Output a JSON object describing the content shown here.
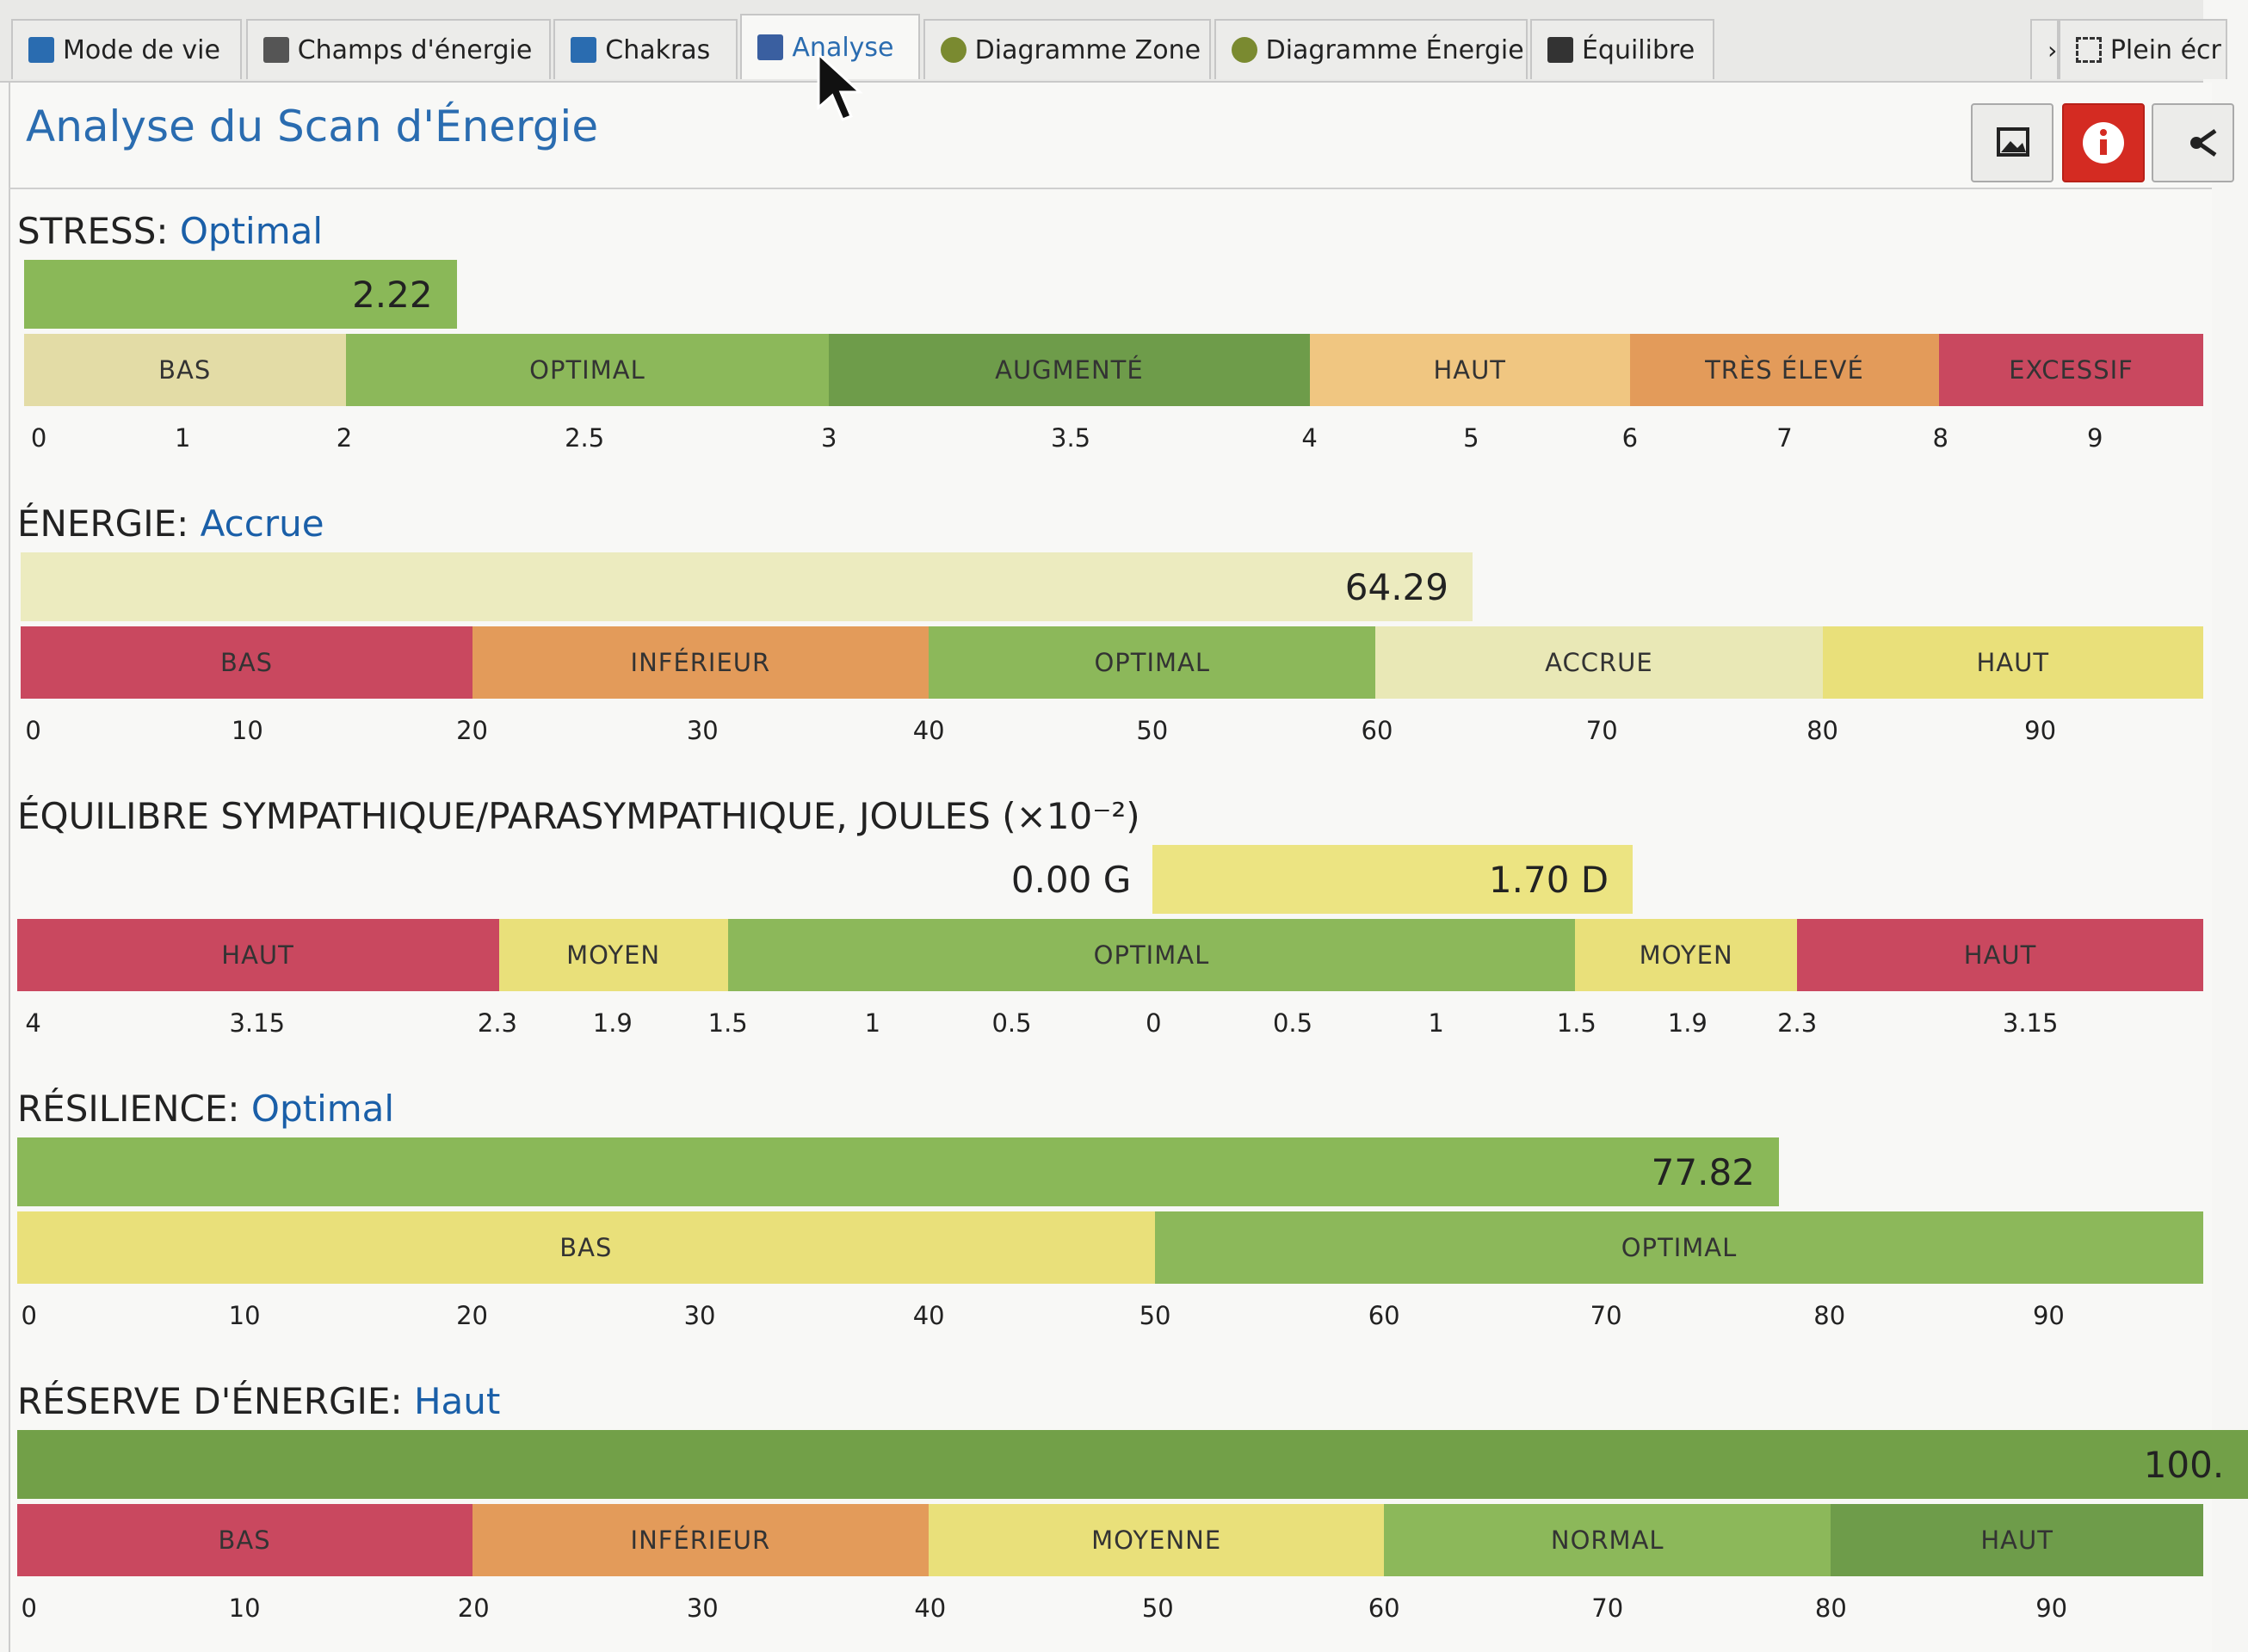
{
  "tabs": [
    "Mode de vie",
    "Champs d'énergie",
    "Chakras",
    "Analyse",
    "Diagramme Zone",
    "Diagramme Énergie",
    "Équilibre"
  ],
  "fullscreen": "Plein écr",
  "title": "Analyse du Scan d'Énergie",
  "sections": [
    {
      "label": "STRESS:",
      "status": "Optimal",
      "value": "2.22",
      "zones": [
        "BAS",
        "OPTIMAL",
        "AUGMENTÉ",
        "HAUT",
        "TRÈS ÉLEVÉ",
        "EXCESSIF"
      ],
      "ticks": [
        "0",
        "1",
        "2",
        "2.5",
        "3",
        "3.5",
        "4",
        "5",
        "6",
        "7",
        "8",
        "9"
      ]
    },
    {
      "label": "ÉNERGIE:",
      "status": "Accrue",
      "value": "64.29",
      "zones": [
        "BAS",
        "INFÉRIEUR",
        "OPTIMAL",
        "ACCRUE",
        "HAUT"
      ],
      "ticks": [
        "0",
        "10",
        "20",
        "30",
        "40",
        "50",
        "60",
        "70",
        "80",
        "90"
      ]
    },
    {
      "label": "ÉQUILIBRE SYMPATHIQUE/PARASYMPATHIQUE, JOULES (×10⁻²)",
      "value_left": "0.00 G",
      "value": "1.70 D",
      "zones": [
        "HAUT",
        "MOYEN",
        "OPTIMAL",
        "MOYEN",
        "HAUT"
      ],
      "ticks": [
        "4",
        "3.15",
        "2.3",
        "1.9",
        "1.5",
        "1",
        "0.5",
        "0",
        "0.5",
        "1",
        "1.5",
        "1.9",
        "2.3",
        "3.15"
      ]
    },
    {
      "label": "RÉSILIENCE:",
      "status": "Optimal",
      "value": "77.82",
      "zones": [
        "BAS",
        "OPTIMAL"
      ],
      "ticks": [
        "0",
        "10",
        "20",
        "30",
        "40",
        "50",
        "60",
        "70",
        "80",
        "90"
      ]
    },
    {
      "label": "RÉSERVE D'ÉNERGIE:",
      "status": "Haut",
      "value": "100.",
      "zones": [
        "BAS",
        "INFÉRIEUR",
        "MOYENNE",
        "NORMAL",
        "HAUT"
      ],
      "ticks": [
        "0",
        "10",
        "20",
        "30",
        "40",
        "50",
        "60",
        "70",
        "80",
        "90"
      ]
    }
  ]
}
